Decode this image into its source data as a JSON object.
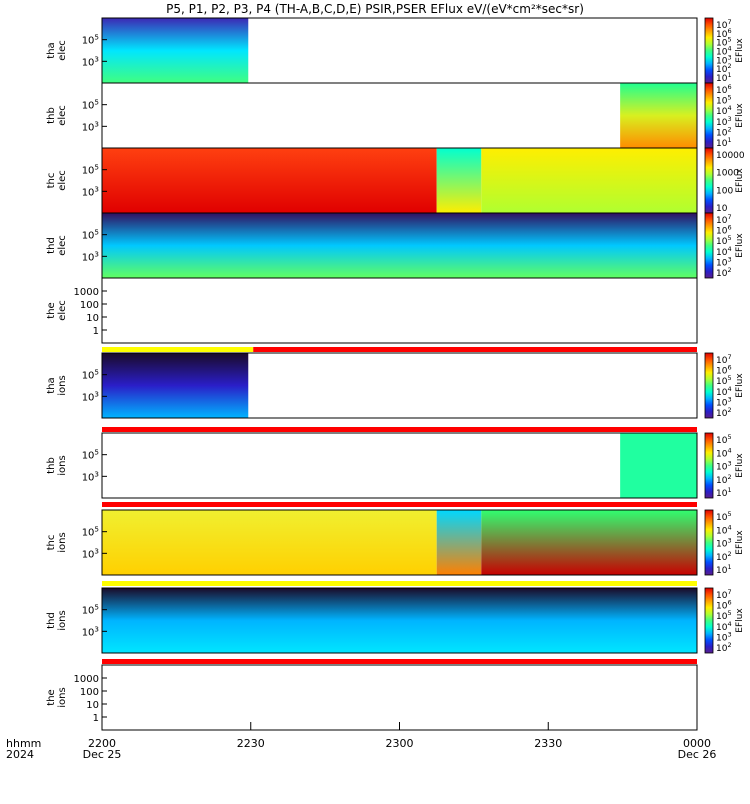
{
  "title": "P5, P1, P2, P3, P4 (TH-A,B,C,D,E) PSIR,PSER EFlux eV/(eV*cm²*sec*sr)",
  "time_axis": {
    "row_label": "hhmm",
    "year_label": "2024",
    "ticks": [
      {
        "label": "2200",
        "date": "Dec 25",
        "t": 0
      },
      {
        "label": "2230",
        "date": "",
        "t": 30
      },
      {
        "label": "2300",
        "date": "",
        "t": 60
      },
      {
        "label": "2330",
        "date": "",
        "t": 90
      },
      {
        "label": "0000",
        "date": "Dec 26",
        "t": 120
      }
    ]
  },
  "colorbar_title": "EFlux",
  "colorbar_colors": [
    "#5a1e8c",
    "#2a1ec8",
    "#0050ff",
    "#00b4ff",
    "#00ffd0",
    "#40ff80",
    "#b0ff30",
    "#ffee00",
    "#ffa000",
    "#ff5000",
    "#e00000"
  ],
  "chart_data": [
    {
      "type": "heatmap",
      "probe": "tha",
      "species": "elec",
      "ylabel": [
        "tha",
        "elec"
      ],
      "y_ticks": [
        "10^3",
        "10^5"
      ],
      "colorbar_ticks": [
        "10^7",
        "10^6",
        "10^5",
        "10^4",
        "10^3",
        "10^2",
        "10^1"
      ],
      "colorbar_range": [
        10,
        10000000
      ],
      "data_coverage_min": [
        0,
        29.5
      ],
      "dominant_colors": {
        "top": "#3c28b4",
        "middle": "#00e6ff",
        "bottom": "#40ff80"
      }
    },
    {
      "type": "heatmap",
      "probe": "thb",
      "species": "elec",
      "ylabel": [
        "thb",
        "elec"
      ],
      "y_ticks": [
        "10^3",
        "10^5"
      ],
      "colorbar_ticks": [
        "10^6",
        "10^5",
        "10^4",
        "10^3",
        "10^2",
        "10^1"
      ],
      "colorbar_range": [
        10,
        1000000
      ],
      "data_coverage_min": [
        104.5,
        120
      ],
      "dominant_colors": {
        "top": "#20ff90",
        "middle": "#d8f020",
        "bottom": "#ff8c00"
      }
    },
    {
      "type": "heatmap",
      "probe": "thc",
      "species": "elec",
      "ylabel": [
        "thc",
        "elec"
      ],
      "y_ticks": [
        "10^3",
        "10^5"
      ],
      "colorbar_ticks": [
        "10000",
        "1000",
        "100",
        "10"
      ],
      "colorbar_range": [
        1,
        100000
      ],
      "data_coverage_min": [
        0,
        120
      ],
      "segments_min": [
        {
          "range": [
            0,
            67.5
          ],
          "colors": [
            "#ff4010",
            "#e00000"
          ]
        },
        {
          "range": [
            67.5,
            76.5
          ],
          "colors": [
            "#00ffd0",
            "#ffee00"
          ]
        },
        {
          "range": [
            76.5,
            120
          ],
          "colors": [
            "#ffee00",
            "#b0ff30"
          ]
        }
      ]
    },
    {
      "type": "heatmap",
      "probe": "thd",
      "species": "elec",
      "ylabel": [
        "thd",
        "elec"
      ],
      "y_ticks": [
        "10^3",
        "10^5"
      ],
      "colorbar_ticks": [
        "10^7",
        "10^6",
        "10^5",
        "10^4",
        "10^3",
        "10^2"
      ],
      "colorbar_range": [
        100,
        10000000
      ],
      "data_coverage_min": [
        0,
        120
      ],
      "dominant_colors": {
        "top": "#301060",
        "middle": "#00c8ff",
        "bottom": "#60ff60"
      }
    },
    {
      "type": "heatmap",
      "probe": "the",
      "species": "elec",
      "ylabel": [
        "the",
        "elec"
      ],
      "y_ticks": [
        "1",
        "10",
        "100",
        "1000"
      ],
      "colorbar_ticks": [],
      "data_coverage_min": []
    },
    {
      "type": "heatmap",
      "probe": "tha",
      "species": "ions",
      "ylabel": [
        "tha",
        "ions"
      ],
      "y_ticks": [
        "10^3",
        "10^5"
      ],
      "colorbar_ticks": [
        "10^7",
        "10^6",
        "10^5",
        "10^4",
        "10^3",
        "10^2"
      ],
      "colorbar_range": [
        100,
        10000000
      ],
      "data_coverage_min": [
        0,
        29.5
      ],
      "dominant_colors": {
        "top": "#1a0a28",
        "middle": "#2a1ec8",
        "bottom": "#00b4ff"
      }
    },
    {
      "type": "heatmap",
      "probe": "thb",
      "species": "ions",
      "ylabel": [
        "thb",
        "ions"
      ],
      "y_ticks": [
        "10^3",
        "10^5"
      ],
      "colorbar_ticks": [
        "10^5",
        "10^4",
        "10^3",
        "10^2",
        "10^1"
      ],
      "colorbar_range": [
        10,
        100000
      ],
      "data_coverage_min": [
        104.5,
        120
      ],
      "dominant_colors": {
        "top": "#20ffa0",
        "middle": "#20ffa0",
        "bottom": "#20ffa0"
      }
    },
    {
      "type": "heatmap",
      "probe": "thc",
      "species": "ions",
      "ylabel": [
        "thc",
        "ions"
      ],
      "y_ticks": [
        "10^3",
        "10^5"
      ],
      "colorbar_ticks": [
        "10^5",
        "10^4",
        "10^3",
        "10^2",
        "10^1"
      ],
      "colorbar_range": [
        10,
        100000
      ],
      "data_coverage_min": [
        0,
        120
      ],
      "segments_min": [
        {
          "range": [
            0,
            67.5
          ],
          "colors": [
            "#f0f030",
            "#ffd000"
          ]
        },
        {
          "range": [
            67.5,
            76.5
          ],
          "colors": [
            "#00d8ff",
            "#ff8000"
          ]
        },
        {
          "range": [
            76.5,
            120
          ],
          "colors": [
            "#30ff70",
            "#c80000"
          ]
        }
      ]
    },
    {
      "type": "heatmap",
      "probe": "thd",
      "species": "ions",
      "ylabel": [
        "thd",
        "ions"
      ],
      "y_ticks": [
        "10^3",
        "10^5"
      ],
      "colorbar_ticks": [
        "10^7",
        "10^6",
        "10^5",
        "10^4",
        "10^3",
        "10^2"
      ],
      "colorbar_range": [
        100,
        10000000
      ],
      "data_coverage_min": [
        0,
        120
      ],
      "dominant_colors": {
        "top": "#1a0a28",
        "middle": "#00b4ff",
        "bottom": "#00e6ff"
      }
    },
    {
      "type": "heatmap",
      "probe": "the",
      "species": "ions",
      "ylabel": [
        "the",
        "ions"
      ],
      "y_ticks": [
        "1",
        "10",
        "100",
        "1000"
      ],
      "colorbar_ticks": [],
      "data_coverage_min": []
    }
  ],
  "status_bars": [
    {
      "after_panel": 4,
      "segments": [
        {
          "range_min": [
            0,
            30.5
          ],
          "color": "#ffff00"
        },
        {
          "range_min": [
            30.5,
            120
          ],
          "color": "#ff0000"
        }
      ]
    },
    {
      "after_panel": 5,
      "segments": [
        {
          "range_min": [
            0,
            120
          ],
          "color": "#ff0000"
        }
      ]
    },
    {
      "after_panel": 6,
      "segments": [
        {
          "range_min": [
            0,
            120
          ],
          "color": "#ff0000"
        }
      ]
    },
    {
      "after_panel": 7,
      "segments": [
        {
          "range_min": [
            0,
            120
          ],
          "color": "#ffff00"
        }
      ]
    },
    {
      "after_panel": 8,
      "segments": [
        {
          "range_min": [
            0,
            120
          ],
          "color": "#ff0000"
        }
      ]
    }
  ]
}
